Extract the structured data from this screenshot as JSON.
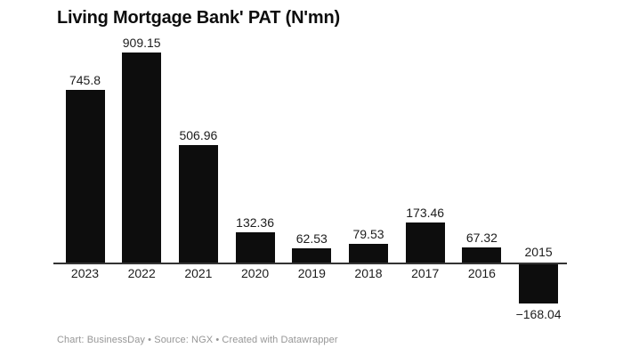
{
  "title": "Living Mortgage Bank' PAT (N'mn)",
  "footer": {
    "text": "Chart: BusinessDay • Source: NGX • Created with Datawrapper"
  },
  "colors": {
    "background": "#ffffff",
    "bar": "#0d0d0d",
    "axis": "#333333",
    "title": "#0d0d0d",
    "label": "#1d1d1d",
    "footer": "#969696"
  },
  "chart_data": {
    "type": "bar",
    "title": "Living Mortgage Bank' PAT (N'mn)",
    "categories": [
      "2023",
      "2022",
      "2021",
      "2020",
      "2019",
      "2018",
      "2017",
      "2016",
      "2015"
    ],
    "values": [
      745.8,
      909.15,
      506.96,
      132.36,
      62.53,
      79.53,
      173.46,
      67.32,
      -168.04
    ],
    "value_labels": [
      "745.8",
      "909.15",
      "506.96",
      "132.36",
      "62.53",
      "79.53",
      "173.46",
      "67.32",
      "−168.04"
    ],
    "xlabel": "",
    "ylabel": "",
    "ylim": [
      -200,
      950
    ],
    "grid": false,
    "legend": null,
    "bar_color": "#0d0d0d",
    "label_position": "outside-end"
  }
}
